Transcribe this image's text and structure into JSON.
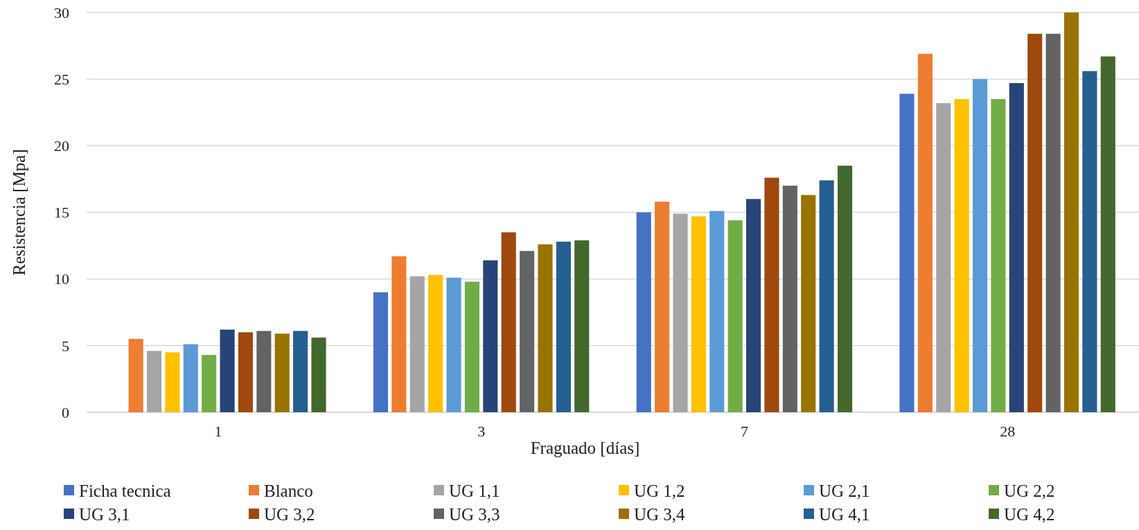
{
  "chart_data": {
    "type": "bar",
    "xlabel": "Fraguado [días]",
    "ylabel": "Resistencia [Mpa]",
    "categories": [
      "1",
      "3",
      "7",
      "28"
    ],
    "ylim": [
      0,
      30
    ],
    "yticks": [
      0,
      5,
      10,
      15,
      20,
      25,
      30
    ],
    "grid": "y",
    "legend": "bottom",
    "series": [
      {
        "name": "Ficha tecnica",
        "color": "#4472c4",
        "values": [
          null,
          9.0,
          15.0,
          23.9
        ]
      },
      {
        "name": "Blanco",
        "color": "#ed7d31",
        "values": [
          5.5,
          11.7,
          15.8,
          26.9
        ]
      },
      {
        "name": "UG 1,1",
        "color": "#a5a5a5",
        "values": [
          4.6,
          10.2,
          14.9,
          23.2
        ]
      },
      {
        "name": "UG 1,2",
        "color": "#ffc000",
        "values": [
          4.5,
          10.3,
          14.7,
          23.5
        ]
      },
      {
        "name": "UG 2,1",
        "color": "#5b9bd5",
        "values": [
          5.1,
          10.1,
          15.1,
          25.0
        ]
      },
      {
        "name": "UG 2,2",
        "color": "#70ad47",
        "values": [
          4.3,
          9.8,
          14.4,
          23.5
        ]
      },
      {
        "name": "UG 3,1",
        "color": "#264478",
        "values": [
          6.2,
          11.4,
          16.0,
          24.7
        ]
      },
      {
        "name": "UG 3,2",
        "color": "#9e480e",
        "values": [
          6.0,
          13.5,
          17.6,
          28.4
        ]
      },
      {
        "name": "UG 3,3",
        "color": "#636363",
        "values": [
          6.1,
          12.1,
          17.0,
          28.4
        ]
      },
      {
        "name": "UG 3,4",
        "color": "#997300",
        "values": [
          5.9,
          12.6,
          16.3,
          30.0
        ]
      },
      {
        "name": "UG 4,1",
        "color": "#255e91",
        "values": [
          6.1,
          12.8,
          17.4,
          25.6
        ]
      },
      {
        "name": "UG 4,2",
        "color": "#43682b",
        "values": [
          5.6,
          12.9,
          18.5,
          26.7
        ]
      }
    ]
  }
}
